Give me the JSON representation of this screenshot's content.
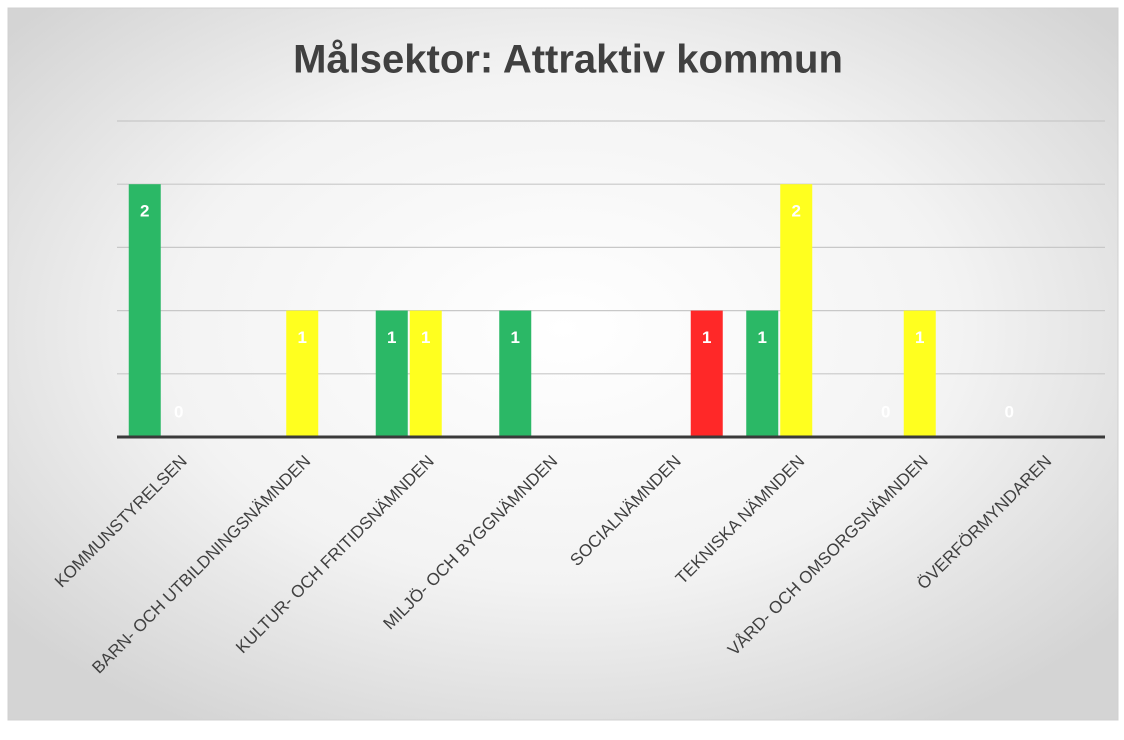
{
  "chart_data": {
    "type": "bar",
    "title": "Målsektor: Attraktiv kommun",
    "categories": [
      "KOMMUNSTYRELSEN",
      "BARN- OCH UTBILDNINGSNÄMNDEN",
      "KULTUR- OCH FRITIDSNÄMNDEN",
      "MILJÖ- OCH BYGGNÄMNDEN",
      "SOCIALNÄMNDEN",
      "TEKNISKA NÄMNDEN",
      "VÅRD- OCH OMSORGSNÄMNDEN",
      "ÖVERFÖRMYNDAREN"
    ],
    "series": [
      {
        "color": "#2bb866",
        "values": [
          2,
          null,
          1,
          1,
          null,
          1,
          0,
          0
        ]
      },
      {
        "color": "#ffff1f",
        "values": [
          0,
          1,
          1,
          null,
          null,
          2,
          1,
          null
        ]
      },
      {
        "color": "#ff2828",
        "values": [
          null,
          null,
          null,
          null,
          1,
          null,
          null,
          null
        ]
      }
    ],
    "ylim": [
      0,
      2.5
    ],
    "yticks": [
      0,
      0.5,
      1,
      1.5,
      2,
      2.5
    ],
    "grid": true
  }
}
